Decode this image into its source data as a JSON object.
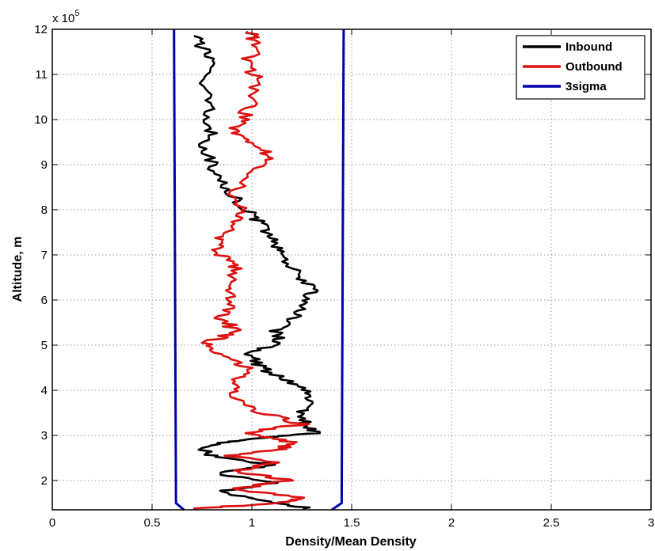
{
  "chart_data": {
    "type": "line",
    "title": "",
    "xlabel": "Density/Mean Density",
    "ylabel": "Altitude, m",
    "y_exponent_label": "x 10",
    "y_exponent": "5",
    "xlim": [
      0,
      3
    ],
    "ylim": [
      1.35,
      12
    ],
    "x_ticks": [
      0,
      0.5,
      1,
      1.5,
      2,
      2.5,
      3
    ],
    "x_tick_labels": [
      "0",
      "0.5",
      "1",
      "1.5",
      "2",
      "2.5",
      "3"
    ],
    "y_ticks": [
      2,
      3,
      4,
      5,
      6,
      7,
      8,
      9,
      10,
      11,
      12
    ],
    "y_tick_labels": [
      "2",
      "3",
      "4",
      "5",
      "6",
      "7",
      "8",
      "9",
      "10",
      "11",
      "12"
    ],
    "grid": true,
    "legend_position": "top-right",
    "series": [
      {
        "name": "Inbound",
        "color": "#000000",
        "points": [
          [
            1.29,
            1.38
          ],
          [
            1.05,
            1.55
          ],
          [
            0.84,
            1.75
          ],
          [
            1.1,
            1.95
          ],
          [
            0.82,
            2.15
          ],
          [
            1.1,
            2.35
          ],
          [
            0.8,
            2.55
          ],
          [
            0.75,
            2.7
          ],
          [
            0.86,
            2.85
          ],
          [
            1.05,
            2.95
          ],
          [
            1.32,
            3.05
          ],
          [
            1.26,
            3.3
          ],
          [
            1.25,
            3.6
          ],
          [
            1.32,
            3.9
          ],
          [
            1.18,
            4.2
          ],
          [
            1.05,
            4.5
          ],
          [
            0.98,
            4.8
          ],
          [
            1.14,
            5.05
          ],
          [
            1.12,
            5.35
          ],
          [
            1.22,
            5.65
          ],
          [
            1.26,
            5.95
          ],
          [
            1.3,
            6.25
          ],
          [
            1.22,
            6.6
          ],
          [
            1.15,
            7.0
          ],
          [
            1.12,
            7.3
          ],
          [
            1.06,
            7.6
          ],
          [
            1.0,
            7.9
          ],
          [
            0.93,
            8.2
          ],
          [
            0.84,
            8.6
          ],
          [
            0.8,
            9.0
          ],
          [
            0.76,
            9.4
          ],
          [
            0.8,
            9.8
          ],
          [
            0.78,
            10.3
          ],
          [
            0.75,
            10.8
          ],
          [
            0.79,
            11.2
          ],
          [
            0.75,
            11.6
          ],
          [
            0.71,
            11.85
          ]
        ]
      },
      {
        "name": "Outbound",
        "color": "#dd1111",
        "points": [
          [
            0.73,
            1.38
          ],
          [
            1.12,
            1.5
          ],
          [
            1.27,
            1.62
          ],
          [
            0.9,
            1.8
          ],
          [
            1.19,
            2.0
          ],
          [
            0.93,
            2.2
          ],
          [
            1.1,
            2.4
          ],
          [
            0.9,
            2.55
          ],
          [
            1.15,
            2.7
          ],
          [
            1.2,
            2.85
          ],
          [
            0.95,
            3.05
          ],
          [
            1.25,
            3.25
          ],
          [
            1.05,
            3.5
          ],
          [
            0.93,
            3.85
          ],
          [
            0.9,
            4.2
          ],
          [
            0.98,
            4.5
          ],
          [
            0.85,
            4.8
          ],
          [
            0.78,
            5.05
          ],
          [
            0.92,
            5.3
          ],
          [
            0.85,
            5.6
          ],
          [
            0.9,
            5.95
          ],
          [
            0.86,
            6.3
          ],
          [
            0.92,
            6.7
          ],
          [
            0.85,
            7.0
          ],
          [
            0.82,
            7.3
          ],
          [
            0.9,
            7.6
          ],
          [
            0.95,
            7.95
          ],
          [
            0.9,
            8.3
          ],
          [
            0.95,
            8.6
          ],
          [
            1.1,
            9.1
          ],
          [
            1.05,
            9.4
          ],
          [
            0.9,
            9.7
          ],
          [
            0.95,
            10.0
          ],
          [
            1.0,
            10.4
          ],
          [
            1.02,
            10.9
          ],
          [
            0.98,
            11.3
          ],
          [
            1.03,
            11.7
          ],
          [
            0.98,
            11.95
          ]
        ]
      },
      {
        "name": "3sigma",
        "color": "#0000aa",
        "points_left": [
          [
            0.66,
            1.35
          ],
          [
            0.62,
            1.5
          ],
          [
            0.61,
            12
          ]
        ],
        "points_right": [
          [
            1.4,
            1.35
          ],
          [
            1.45,
            1.5
          ],
          [
            1.46,
            12
          ]
        ]
      }
    ]
  }
}
